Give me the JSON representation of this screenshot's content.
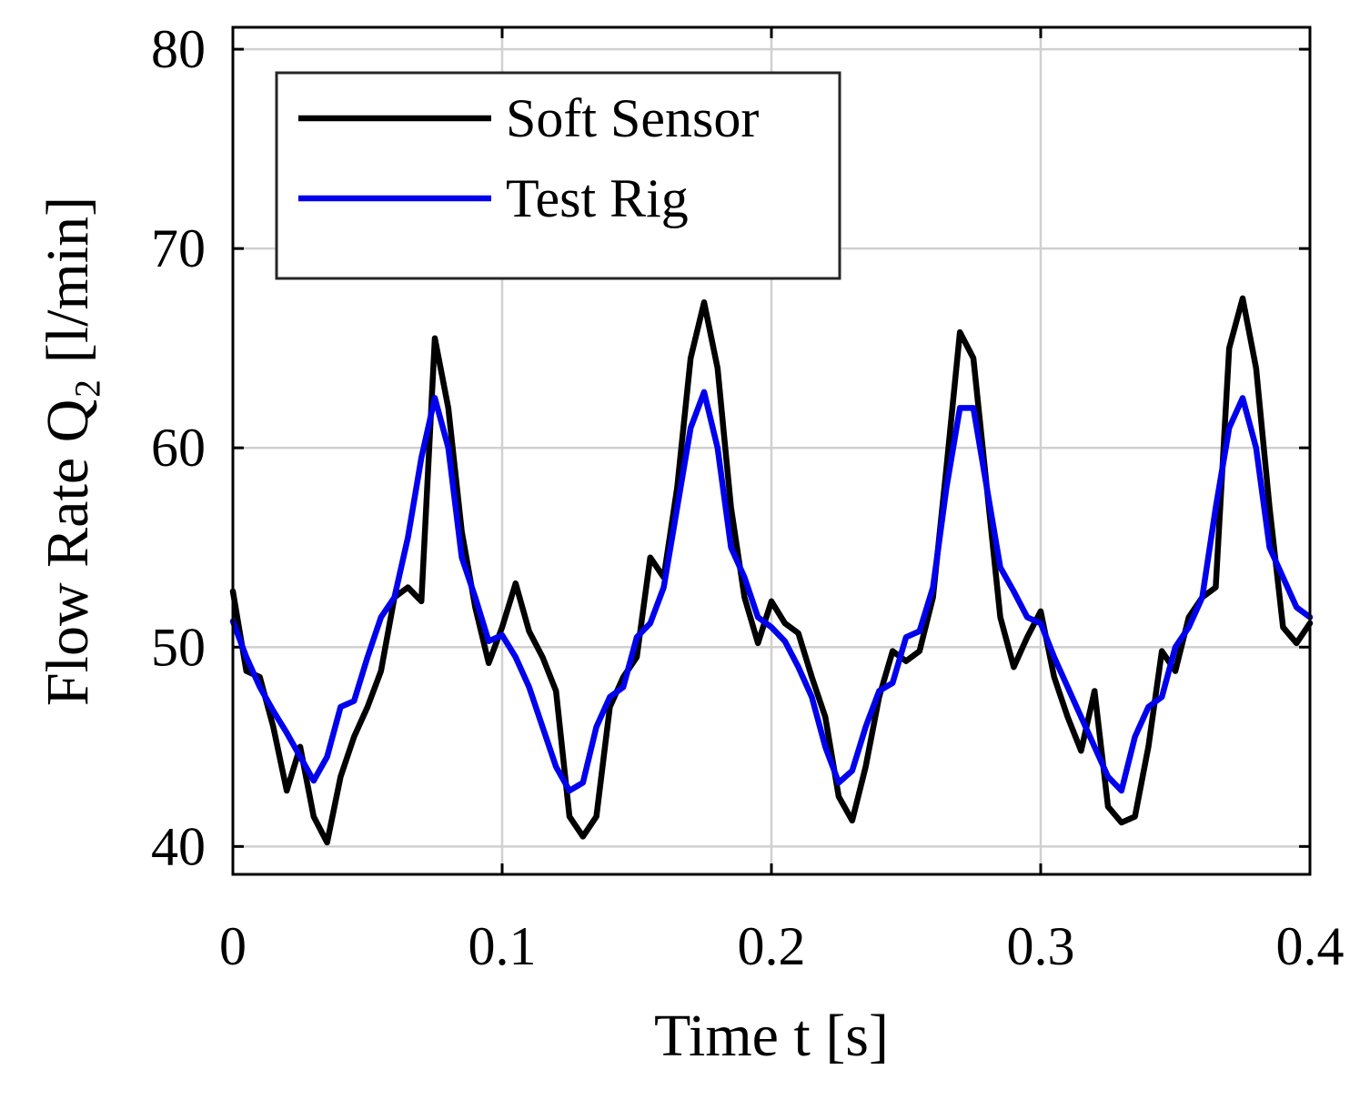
{
  "chart_data": {
    "type": "line",
    "xlabel": "Time t [s]",
    "ylabel": "Flow Rate Q₂ [l/min]",
    "x": [
      0,
      0.005,
      0.01,
      0.015,
      0.02,
      0.025,
      0.03,
      0.035,
      0.04,
      0.045,
      0.05,
      0.055,
      0.06,
      0.065,
      0.07,
      0.075,
      0.08,
      0.085,
      0.09,
      0.095,
      0.1,
      0.105,
      0.11,
      0.115,
      0.12,
      0.125,
      0.13,
      0.135,
      0.14,
      0.145,
      0.15,
      0.155,
      0.16,
      0.165,
      0.17,
      0.175,
      0.18,
      0.185,
      0.19,
      0.195,
      0.2,
      0.205,
      0.21,
      0.215,
      0.22,
      0.225,
      0.23,
      0.235,
      0.24,
      0.245,
      0.25,
      0.255,
      0.26,
      0.265,
      0.27,
      0.275,
      0.28,
      0.285,
      0.29,
      0.295,
      0.3,
      0.305,
      0.31,
      0.315,
      0.32,
      0.325,
      0.33,
      0.335,
      0.34,
      0.345,
      0.35,
      0.355,
      0.36,
      0.365,
      0.37,
      0.375,
      0.38,
      0.385,
      0.39,
      0.395,
      0.4
    ],
    "series": [
      {
        "name": "Soft Sensor",
        "color": "#000000",
        "values": [
          52.8,
          48.8,
          48.5,
          46,
          42.8,
          45,
          41.5,
          40.2,
          43.5,
          45.5,
          47,
          48.8,
          52.5,
          53,
          52.3,
          65.5,
          62,
          55.8,
          52,
          49.2,
          51,
          53.2,
          50.8,
          49.5,
          47.8,
          41.5,
          40.5,
          41.5,
          47,
          48.5,
          49.5,
          54.5,
          53.5,
          58,
          64.5,
          67.3,
          64,
          57,
          52.5,
          50.2,
          52.3,
          51.2,
          50.7,
          48.5,
          46.5,
          42.5,
          41.3,
          44,
          47.5,
          49.8,
          49.3,
          49.8,
          52.5,
          59,
          65.8,
          64.5,
          58,
          51.5,
          49,
          50.5,
          51.8,
          48.5,
          46.5,
          44.8,
          47.8,
          42,
          41.2,
          41.5,
          45,
          49.8,
          48.8,
          51.5,
          52.5,
          53,
          65,
          67.5,
          64,
          57,
          51,
          50.2,
          51.2
        ]
      },
      {
        "name": "Test Rig",
        "color": "#0000ee",
        "values": [
          51.3,
          49.5,
          48,
          46.8,
          45.7,
          44.5,
          43.3,
          44.5,
          47,
          47.3,
          49.5,
          51.5,
          52.5,
          55.5,
          59.5,
          62.5,
          60,
          54.5,
          52.5,
          50.3,
          50.6,
          49.5,
          48,
          46,
          44,
          42.8,
          43.2,
          46,
          47.5,
          48,
          50.5,
          51.2,
          53,
          57,
          61,
          62.8,
          60,
          55,
          53.5,
          51.5,
          51,
          50.3,
          49,
          47.5,
          45,
          43.2,
          43.8,
          46,
          47.8,
          48.2,
          50.5,
          50.8,
          53,
          58,
          62,
          62,
          58,
          54,
          52.8,
          51.5,
          51.2,
          49.5,
          48,
          46.5,
          45,
          43.5,
          42.8,
          45.5,
          47,
          47.5,
          50,
          51,
          52.5,
          57,
          61,
          62.5,
          60,
          55,
          53.5,
          52,
          51.5
        ]
      }
    ],
    "xlim": [
      0,
      0.4
    ],
    "xticks": [
      0,
      0.1,
      0.2,
      0.3,
      0.4
    ],
    "ylim": [
      38.6,
      81.1
    ],
    "yticks": [
      40,
      50,
      60,
      70,
      80
    ],
    "grid": true,
    "legend": "upper left"
  }
}
